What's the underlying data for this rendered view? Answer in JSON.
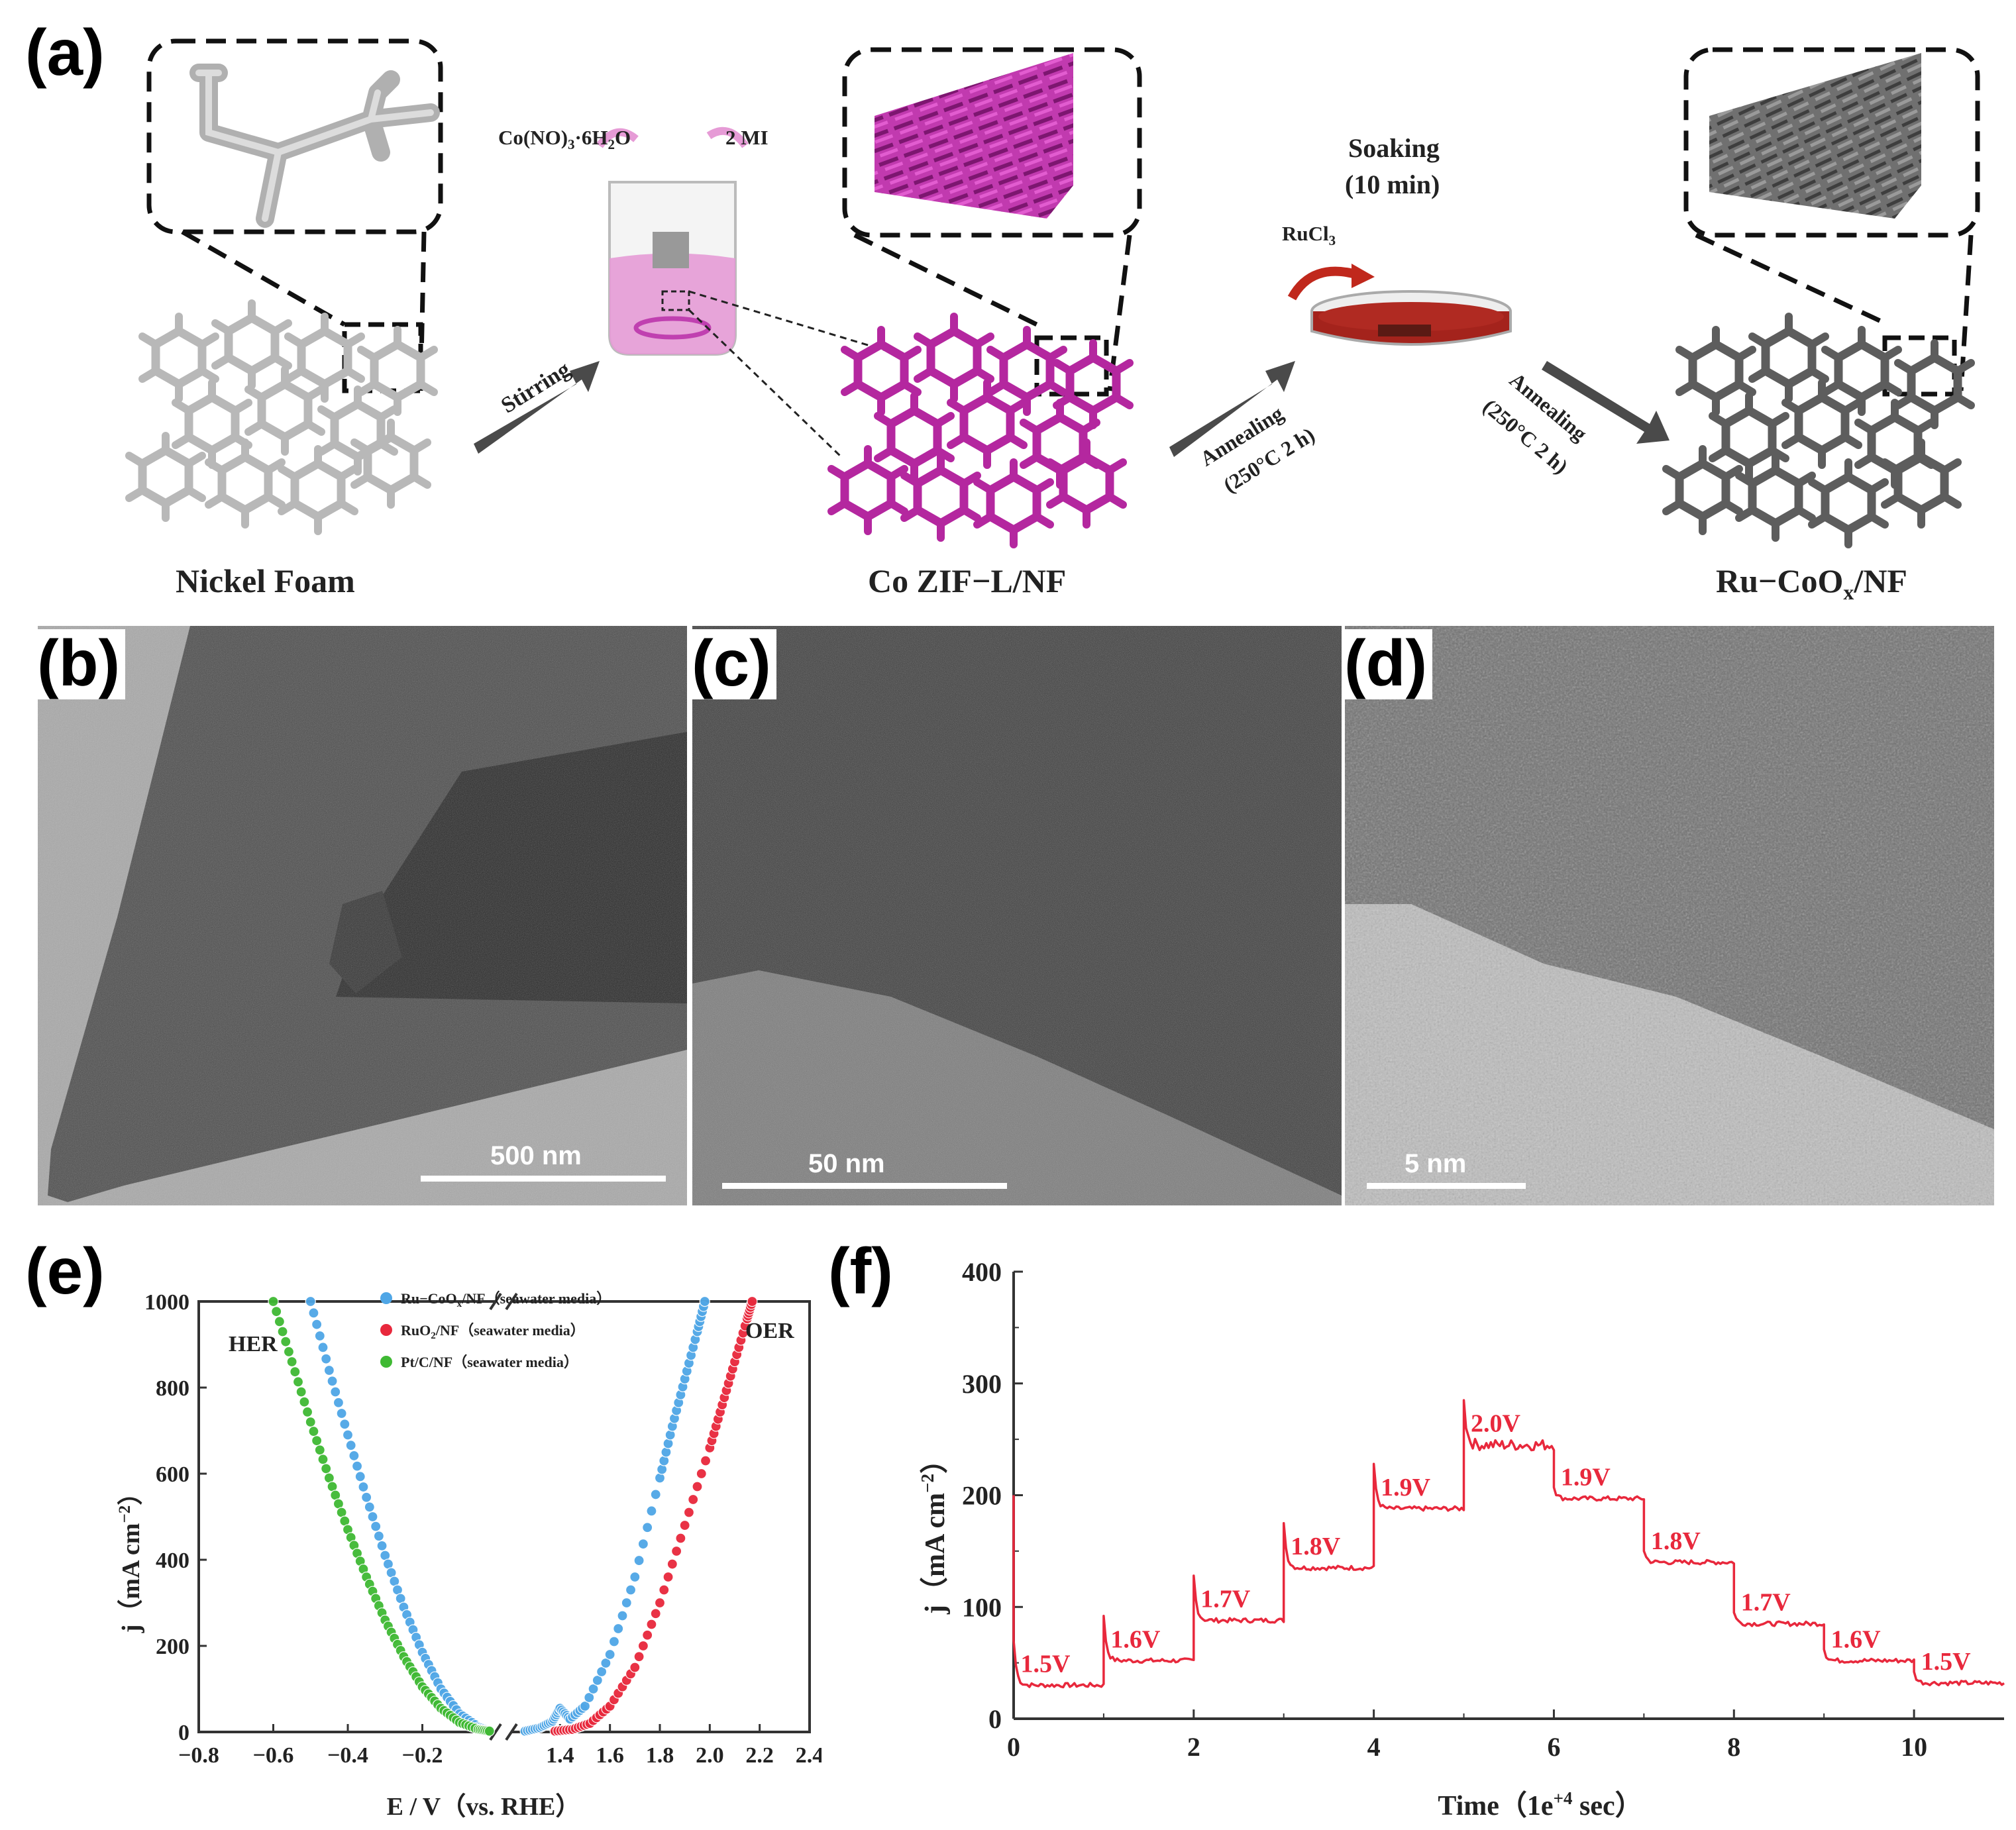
{
  "panel_labels": {
    "a": "(a)",
    "b": "(b)",
    "c": "(c)",
    "d": "(d)",
    "e": "(e)",
    "f": "(f)"
  },
  "schematic": {
    "stage1_label": "Nickel Foam",
    "stage2_label": "Co ZIF−L/NF",
    "stage3_label": "Ru−CoO",
    "stage3_sub": "x",
    "stage3_suffix": "/NF",
    "reagent1": "Co(NO)",
    "reagent1_sub": "3",
    "reagent1_rest": "·6H",
    "reagent1_sub2": "2",
    "reagent1_end": "O",
    "reagent2": "2 MI",
    "arrow1_label": "Stirring",
    "arrow2_label_1": "Annealing",
    "arrow2_label_2": "(250°C 2 h)",
    "soaking_1": "Soaking",
    "soaking_2": "(10 min)",
    "ruthenium_salt": "RuCl",
    "ruthenium_salt_sub": "3",
    "arrow3_label_1": "Annealing",
    "arrow3_label_2": "(250°C 2 h)",
    "colors": {
      "nickel": "#bdbdbd",
      "zif": "#b4279f",
      "ruco": "#5d5d5d",
      "solution": "#e69bd6",
      "petri": "#a4231c",
      "arrow": "#4a4a4a"
    }
  },
  "tem": {
    "b_scale": "500 nm",
    "c_scale": "50 nm",
    "d_scale": "5 nm"
  },
  "chart_data": [
    {
      "panel": "e",
      "type": "scatter",
      "xlabel": "E / V（vs. RHE）",
      "ylabel": "j（mA cm",
      "ylabel_sup": "−2",
      "ylabel_end": "）",
      "ylim": [
        0,
        1000
      ],
      "yticks": [
        "0",
        "200",
        "400",
        "600",
        "800",
        "1000"
      ],
      "xticks_left": [
        "−0.8",
        "−0.6",
        "−0.4",
        "−0.2"
      ],
      "xticks_right": [
        "1.4",
        "1.6",
        "1.8",
        "2.0",
        "2.2",
        "2.4"
      ],
      "xlim_left": [
        -0.8,
        0.0
      ],
      "xlim_right": [
        1.2,
        2.4
      ],
      "annotations": {
        "her": "HER",
        "oer": "OER"
      },
      "legend": [
        {
          "name": "Ru−CoO",
          "sub": "x",
          "rest": "/NF（seawater media）",
          "color": "#4fa6e6"
        },
        {
          "name": "RuO",
          "sub": "2",
          "rest": "/NF（seawater media）",
          "color": "#e8283c"
        },
        {
          "name": "Pt/C/NF（seawater media）",
          "sub": "",
          "rest": "",
          "color": "#3fb933"
        }
      ],
      "series": [
        {
          "name": "Ru−CoOx/NF HER",
          "color": "#4fa6e6",
          "x": [
            -0.5,
            -0.45,
            -0.4,
            -0.35,
            -0.3,
            -0.25,
            -0.2,
            -0.15,
            -0.1,
            -0.05,
            -0.02
          ],
          "y": [
            1000,
            840,
            690,
            545,
            410,
            290,
            185,
            100,
            42,
            12,
            3
          ]
        },
        {
          "name": "Pt/C/NF HER",
          "color": "#3fb933",
          "x": [
            -0.6,
            -0.55,
            -0.5,
            -0.45,
            -0.4,
            -0.35,
            -0.3,
            -0.25,
            -0.2,
            -0.15,
            -0.1,
            -0.05,
            -0.02
          ],
          "y": [
            1000,
            860,
            720,
            590,
            470,
            360,
            260,
            175,
            105,
            55,
            22,
            6,
            2
          ]
        },
        {
          "name": "Ru−CoOx/NF OER",
          "color": "#4fa6e6",
          "x": [
            1.26,
            1.32,
            1.37,
            1.4,
            1.44,
            1.5,
            1.6,
            1.7,
            1.8,
            1.85,
            1.9,
            1.95,
            1.98
          ],
          "y": [
            2,
            10,
            25,
            55,
            30,
            60,
            180,
            360,
            590,
            710,
            820,
            930,
            1000
          ]
        },
        {
          "name": "RuO2/NF OER",
          "color": "#e8283c",
          "x": [
            1.38,
            1.45,
            1.52,
            1.6,
            1.7,
            1.8,
            1.9,
            2.0,
            2.05,
            2.1,
            2.15,
            2.17
          ],
          "y": [
            2,
            6,
            20,
            60,
            150,
            300,
            480,
            660,
            760,
            860,
            960,
            1000
          ]
        }
      ]
    },
    {
      "panel": "f",
      "type": "line",
      "xlabel": "Time（1e",
      "xlabel_sup": "+4",
      "xlabel_end": " sec）",
      "ylabel": "j（mA cm",
      "ylabel_sup": "−2",
      "ylabel_end": "）",
      "xlim": [
        0,
        11
      ],
      "ylim": [
        0,
        400
      ],
      "xticks": [
        "0",
        "2",
        "4",
        "6",
        "8",
        "10"
      ],
      "yticks": [
        "0",
        "100",
        "200",
        "300",
        "400"
      ],
      "color": "#e8283c",
      "steps": [
        {
          "label": "1.5V",
          "t0": 0,
          "t1": 1,
          "j": 30
        },
        {
          "label": "1.6V",
          "t0": 1,
          "t1": 2,
          "j": 52
        },
        {
          "label": "1.7V",
          "t0": 2,
          "t1": 3,
          "j": 88
        },
        {
          "label": "1.8V",
          "t0": 3,
          "t1": 4,
          "j": 135
        },
        {
          "label": "1.9V",
          "t0": 4,
          "t1": 5,
          "j": 188
        },
        {
          "label": "2.0V",
          "t0": 5,
          "t1": 6,
          "j": 245
        },
        {
          "label": "1.9V",
          "t0": 6,
          "t1": 7,
          "j": 197
        },
        {
          "label": "1.8V",
          "t0": 7,
          "t1": 8,
          "j": 140
        },
        {
          "label": "1.7V",
          "t0": 8,
          "t1": 9,
          "j": 85
        },
        {
          "label": "1.6V",
          "t0": 9,
          "t1": 10,
          "j": 52
        },
        {
          "label": "1.5V",
          "t0": 10,
          "t1": 11,
          "j": 32
        }
      ]
    }
  ]
}
